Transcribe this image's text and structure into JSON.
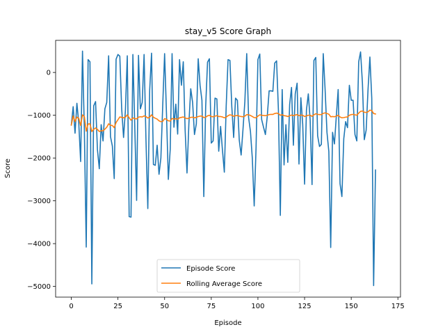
{
  "chart_data": {
    "type": "line",
    "title": "stay_v5 Score Graph",
    "xlabel": "Episode",
    "ylabel": "Score",
    "xlim": [
      -8.4,
      176.4
    ],
    "ylim": [
      -5250,
      750
    ],
    "xticks": [
      0,
      25,
      50,
      75,
      100,
      125,
      150,
      175
    ],
    "yticks": [
      -5000,
      -4000,
      -3000,
      -2000,
      -1000,
      0
    ],
    "grid": false,
    "legend_position": "lower-center",
    "colors": {
      "episode": "#1f77b4",
      "rolling": "#ff7f0e"
    },
    "series": [
      {
        "name": "Episode Score",
        "x_start": 0,
        "values": [
          -1230,
          -800,
          -1420,
          -720,
          -1180,
          -2080,
          500,
          -1350,
          -4080,
          300,
          250,
          -4940,
          -780,
          -680,
          -1800,
          -2250,
          -1220,
          -1600,
          -850,
          -700,
          390,
          -1500,
          -1720,
          -2480,
          310,
          420,
          380,
          -850,
          -1520,
          -880,
          390,
          -3370,
          -3380,
          420,
          -1250,
          -2990,
          400,
          -850,
          -700,
          420,
          -1550,
          -3180,
          -420,
          450,
          -2150,
          -2170,
          -1700,
          -2380,
          -2000,
          -760,
          440,
          -960,
          -2500,
          -1800,
          440,
          -1280,
          -740,
          -1440,
          300,
          -300,
          250,
          -1350,
          -2350,
          -1200,
          -380,
          -700,
          -1450,
          -1200,
          320,
          -300,
          -650,
          -2900,
          -800,
          240,
          320,
          -1650,
          -1600,
          -600,
          -620,
          -1840,
          -1260,
          -1820,
          -2330,
          -780,
          300,
          280,
          -800,
          -1520,
          -600,
          -650,
          -1580,
          -1930,
          -1330,
          -680,
          440,
          -1050,
          -1380,
          -2010,
          -3120,
          -1760,
          300,
          430,
          -1100,
          -1280,
          -1450,
          -1030,
          -430,
          -430,
          -440,
          220,
          270,
          -900,
          -3340,
          -400,
          -2160,
          -1220,
          -2100,
          -750,
          -350,
          -1700,
          -500,
          -250,
          -2140,
          -590,
          -1210,
          -2610,
          -880,
          -500,
          -1120,
          -2620,
          280,
          350,
          -1480,
          -1730,
          -1680,
          440,
          -400,
          -1400,
          -1850,
          -4090,
          -1400,
          -1670,
          -1030,
          -400,
          -2600,
          -2900,
          -1550,
          -1150,
          -1290,
          -300,
          -650,
          -650,
          -1450,
          -1600,
          250,
          480,
          -250,
          -1570,
          -1350,
          -400,
          360,
          -600,
          -4980,
          -2280
        ]
      },
      {
        "name": "Rolling Average Score",
        "x_start": 0,
        "values": [
          -1230,
          -1015,
          -1150,
          -1043,
          -1070,
          -1239,
          -990,
          -1035,
          -1373,
          -1205,
          -1200,
          -1380,
          -1330,
          -1297,
          -1330,
          -1380,
          -1360,
          -1365,
          -1325,
          -1280,
          -1200,
          -1235,
          -1240,
          -1290,
          -1170,
          -1105,
          -1040,
          -1050,
          -1060,
          -1045,
          -990,
          -1060,
          -1115,
          -1060,
          -1080,
          -1085,
          -1045,
          -1035,
          -1040,
          -1015,
          -1030,
          -1065,
          -1045,
          -990,
          -1045,
          -1070,
          -1090,
          -1130,
          -1150,
          -1140,
          -1080,
          -1095,
          -1130,
          -1135,
          -1075,
          -1090,
          -1080,
          -1095,
          -1060,
          -1050,
          -1040,
          -1060,
          -1080,
          -1070,
          -1050,
          -1045,
          -1060,
          -1050,
          -1030,
          -1020,
          -1020,
          -1055,
          -1045,
          -1015,
          -1000,
          -1030,
          -1035,
          -1020,
          -1010,
          -1030,
          -1030,
          -1040,
          -1060,
          -1045,
          -1010,
          -990,
          -1000,
          -1025,
          -1010,
          -1005,
          -1020,
          -1030,
          -1035,
          -1020,
          -985,
          -990,
          -1005,
          -1030,
          -1055,
          -1060,
          -1020,
          -990,
          -1000,
          -1005,
          -1010,
          -1000,
          -985,
          -980,
          -980,
          -960,
          -950,
          -960,
          -1000,
          -985,
          -1010,
          -1015,
          -1030,
          -1010,
          -995,
          -1010,
          -995,
          -985,
          -1010,
          -995,
          -1000,
          -1030,
          -1015,
          -1000,
          -1000,
          -1025,
          -990,
          -965,
          -980,
          -985,
          -985,
          -955,
          -945,
          -960,
          -975,
          -1035,
          -1030,
          -1035,
          -1020,
          -1000,
          -1040,
          -1060,
          -1055,
          -1045,
          -1040,
          -1000,
          -985,
          -980,
          -990,
          -1000,
          -950,
          -910,
          -900,
          -930,
          -935,
          -920,
          -880,
          -890,
          -960,
          -970
        ]
      }
    ]
  }
}
